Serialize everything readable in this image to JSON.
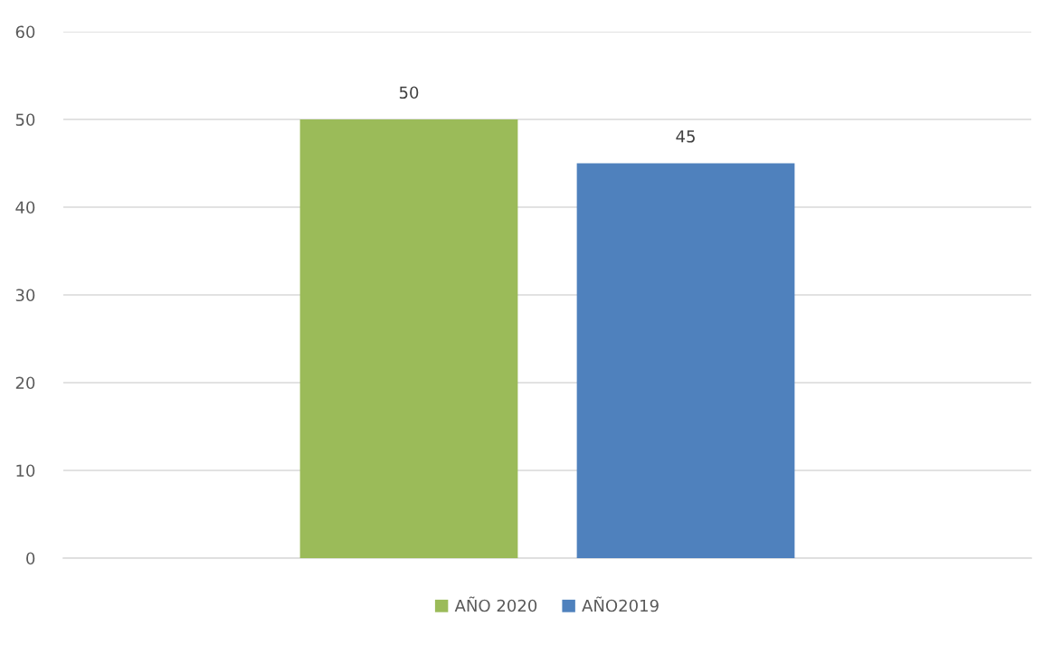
{
  "chart_data": {
    "type": "bar",
    "categories": [
      null
    ],
    "series": [
      {
        "name": "AÑO 2020",
        "color": "#9bbb59",
        "values": [
          50
        ]
      },
      {
        "name": "AÑO2019",
        "color": "#4f81bd",
        "values": [
          45
        ]
      }
    ],
    "ylim": [
      0,
      60
    ],
    "yticks": [
      0,
      10,
      20,
      30,
      40,
      50,
      60
    ],
    "grid": "y",
    "legend": "bottom",
    "data_labels": true
  }
}
